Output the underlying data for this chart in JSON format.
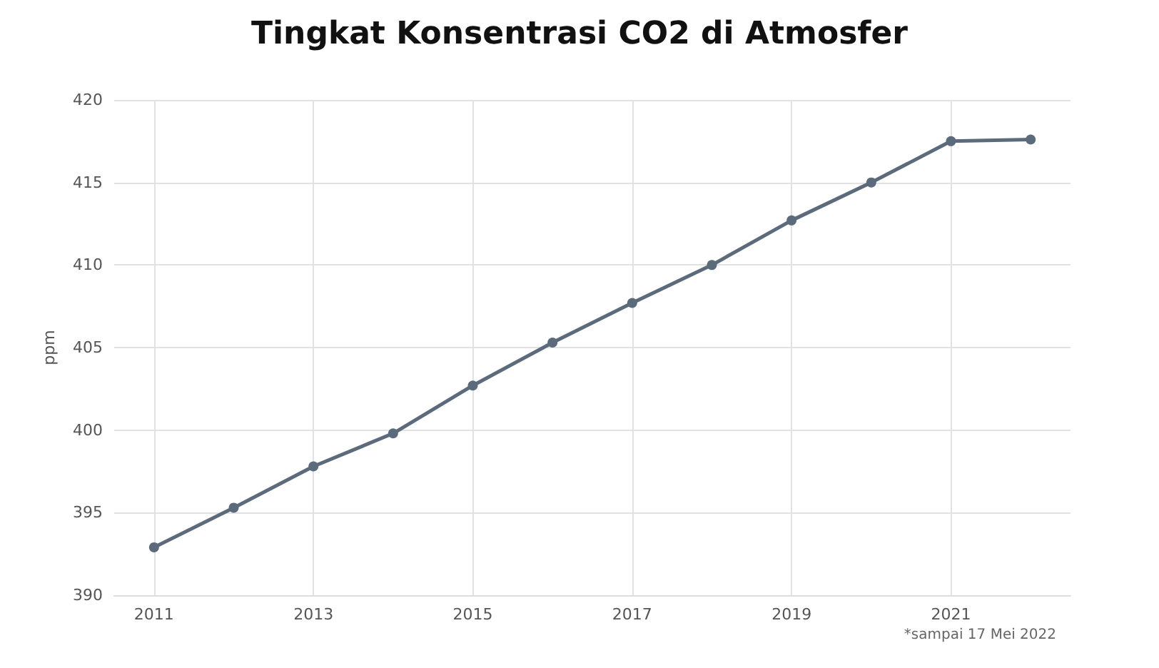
{
  "chart_data": {
    "type": "line",
    "title": "Tingkat Konsentrasi CO2 di Atmosfer",
    "ylabel": "ppm",
    "x": [
      2011,
      2012,
      2013,
      2014,
      2015,
      2016,
      2017,
      2018,
      2019,
      2020,
      2021,
      2022
    ],
    "series": [
      {
        "color": "#5b6b7c",
        "values": [
          392.9,
          395.3,
          397.8,
          399.8,
          402.7,
          405.3,
          407.7,
          410.0,
          412.7,
          415.0,
          417.5,
          417.6
        ]
      }
    ],
    "xlim": [
      2010.5,
      2022.5
    ],
    "xticks": [
      2011,
      2013,
      2015,
      2017,
      2019,
      2021
    ],
    "ylim": [
      390,
      420
    ],
    "yticks": [
      390,
      395,
      400,
      405,
      410,
      415,
      420
    ],
    "grid": true,
    "marker": "circle",
    "line_style": "solid",
    "annotations": [
      "*sampai 17 Mei 2022"
    ]
  }
}
